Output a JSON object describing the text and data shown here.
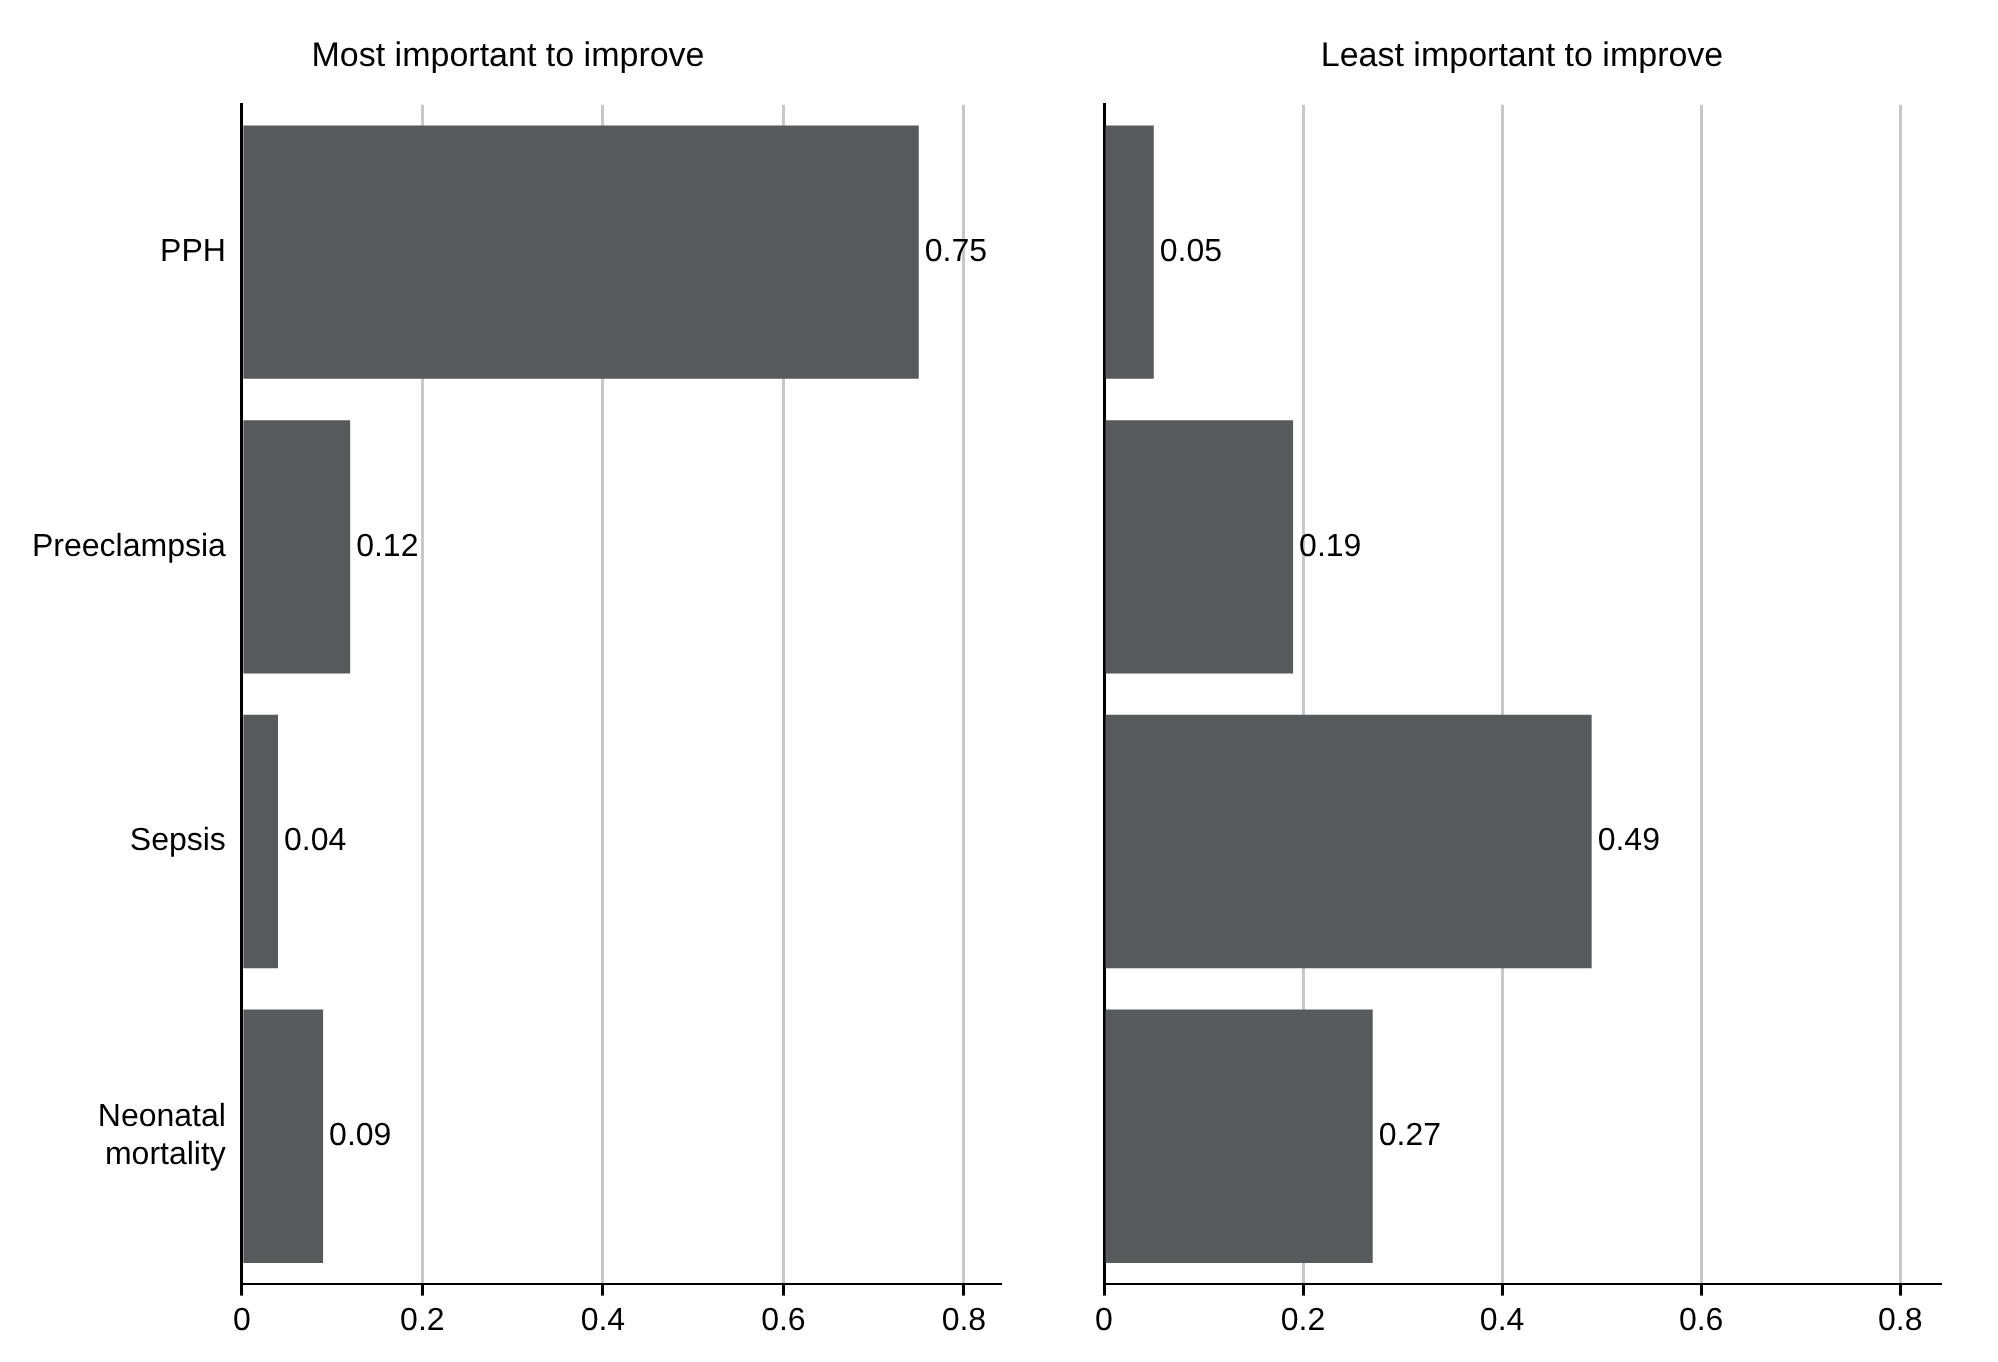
{
  "chart_data": [
    {
      "type": "bar",
      "orientation": "horizontal",
      "title": "Most important to improve",
      "categories": [
        "PPH",
        "Preeclampsia",
        "Sepsis",
        "Neonatal mortality"
      ],
      "values": [
        0.75,
        0.12,
        0.04,
        0.09
      ],
      "color": "#58595b",
      "data_labels": true,
      "xlim": [
        0,
        0.84
      ],
      "xticks": [
        0,
        0.2,
        0.4,
        0.6,
        0.8
      ],
      "grid": "x"
    },
    {
      "type": "bar",
      "orientation": "horizontal",
      "title": "Least important to improve",
      "categories": [
        null,
        null,
        null,
        null
      ],
      "values": [
        0.05,
        0.19,
        0.49,
        0.27
      ],
      "color": "#58595b",
      "data_labels": true,
      "xlim": [
        0,
        0.84
      ],
      "xticks": [
        0,
        0.2,
        0.4,
        0.6,
        0.8
      ],
      "grid": "x",
      "tick_labels": "x"
    }
  ]
}
